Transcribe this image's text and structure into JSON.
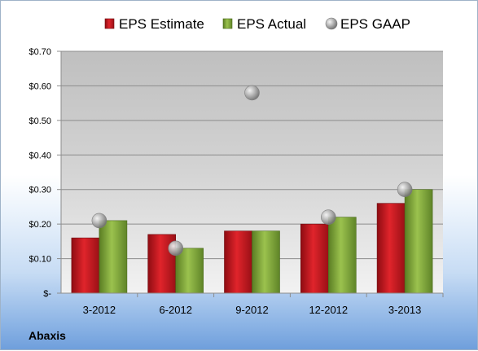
{
  "company": "Abaxis",
  "chart_data": {
    "type": "bar",
    "categories": [
      "3-2012",
      "6-2012",
      "9-2012",
      "12-2012",
      "3-2013"
    ],
    "series": [
      {
        "name": "EPS Estimate",
        "kind": "bar",
        "color": "#c0161d",
        "values": [
          0.16,
          0.17,
          0.18,
          0.2,
          0.26
        ]
      },
      {
        "name": "EPS Actual",
        "kind": "bar",
        "color": "#7ea63a",
        "values": [
          0.21,
          0.13,
          0.18,
          0.22,
          0.3
        ]
      },
      {
        "name": "EPS GAAP",
        "kind": "marker",
        "color": "#a6a6a6",
        "values": [
          0.21,
          0.13,
          0.58,
          0.22,
          0.3
        ]
      }
    ],
    "yticks": [
      "$-",
      "$0.10",
      "$0.20",
      "$0.30",
      "$0.40",
      "$0.50",
      "$0.60",
      "$0.70"
    ],
    "ylim": [
      0,
      0.7
    ],
    "grid": true,
    "legend": "top"
  }
}
